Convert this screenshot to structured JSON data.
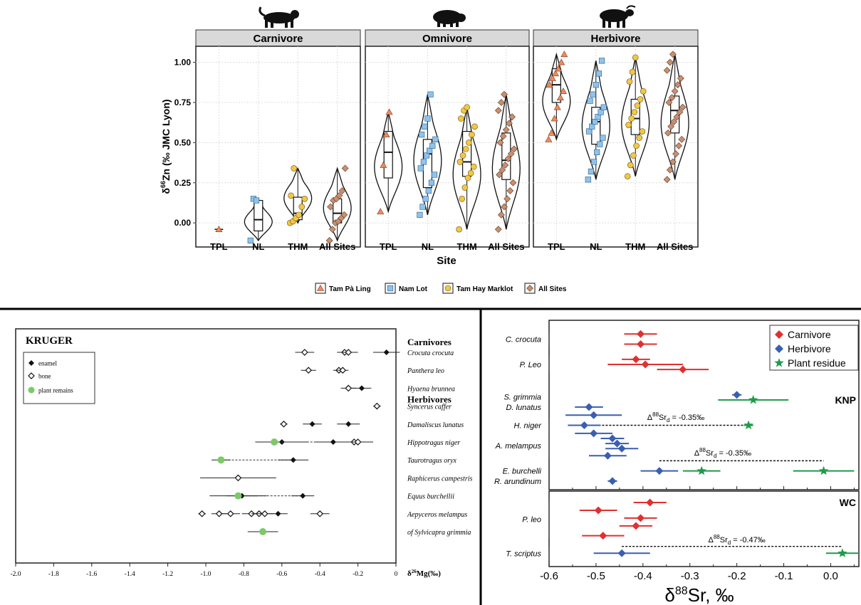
{
  "colors": {
    "tpl": "#f08a5d",
    "nl": "#8fc3ec",
    "thm": "#f2c744",
    "all": "#c98f70",
    "carnivore": "#e03030",
    "herbivore": "#3a5fb0",
    "plant": "#1e9a4a",
    "kruger_plant": "#7cc96a",
    "strip": "#d9d9d9"
  },
  "chart_data": [
    {
      "type": "violin",
      "ylabel_main": "δ",
      "ylabel_sup": "66",
      "ylabel_rest": "Zn (‰ JMC Lyon)",
      "xlabel": "Site",
      "ylim": [
        -0.15,
        1.1
      ],
      "yticks": [
        "1.00",
        "0.75",
        "0.50",
        "0.25",
        "0.00"
      ],
      "categories": [
        "TPL",
        "NL",
        "THM",
        "All Sites"
      ],
      "legend": [
        "Tam Pà Ling",
        "Nam Lot",
        "Tam Hay Marklot",
        "All Sites"
      ],
      "panels": [
        {
          "name": "Carnivore",
          "groups": [
            {
              "site": "TPL",
              "min": -0.04,
              "q1": -0.04,
              "median": -0.04,
              "q3": -0.04,
              "max": -0.04,
              "points": [
                -0.04
              ]
            },
            {
              "site": "NL",
              "min": -0.11,
              "q1": -0.05,
              "median": 0.02,
              "q3": 0.14,
              "max": 0.15,
              "points": [
                -0.11,
                0.15,
                0.14
              ]
            },
            {
              "site": "THM",
              "min": 0.0,
              "q1": 0.02,
              "median": 0.06,
              "q3": 0.16,
              "max": 0.34,
              "points": [
                0.0,
                0.01,
                0.03,
                0.05,
                0.1,
                0.15,
                0.17,
                0.34
              ]
            },
            {
              "site": "All Sites",
              "min": -0.11,
              "q1": 0.0,
              "median": 0.06,
              "q3": 0.15,
              "max": 0.34,
              "points": [
                -0.11,
                -0.04,
                0.0,
                0.01,
                0.03,
                0.05,
                0.1,
                0.14,
                0.15,
                0.17,
                0.2,
                0.34
              ]
            }
          ]
        },
        {
          "name": "Omnivore",
          "groups": [
            {
              "site": "TPL",
              "min": 0.07,
              "q1": 0.28,
              "median": 0.44,
              "q3": 0.57,
              "max": 0.69,
              "points": [
                0.07,
                0.36,
                0.55,
                0.69
              ]
            },
            {
              "site": "NL",
              "min": 0.05,
              "q1": 0.22,
              "median": 0.43,
              "q3": 0.52,
              "max": 0.8,
              "points": [
                0.05,
                0.1,
                0.15,
                0.2,
                0.25,
                0.3,
                0.34,
                0.38,
                0.42,
                0.45,
                0.48,
                0.52,
                0.55,
                0.6,
                0.65,
                0.8
              ]
            },
            {
              "site": "THM",
              "min": -0.04,
              "q1": 0.29,
              "median": 0.38,
              "q3": 0.57,
              "max": 0.72,
              "points": [
                -0.04,
                0.15,
                0.22,
                0.28,
                0.31,
                0.35,
                0.38,
                0.42,
                0.46,
                0.5,
                0.55,
                0.6,
                0.65,
                0.7,
                0.72
              ]
            },
            {
              "site": "All Sites",
              "min": -0.04,
              "q1": 0.27,
              "median": 0.39,
              "q3": 0.56,
              "max": 0.8,
              "points": [
                -0.04,
                0.05,
                0.1,
                0.15,
                0.2,
                0.25,
                0.3,
                0.33,
                0.36,
                0.4,
                0.43,
                0.46,
                0.5,
                0.54,
                0.58,
                0.62,
                0.66,
                0.7,
                0.75,
                0.8
              ]
            }
          ]
        },
        {
          "name": "Herbivore",
          "groups": [
            {
              "site": "TPL",
              "min": 0.52,
              "q1": 0.75,
              "median": 0.86,
              "q3": 0.96,
              "max": 1.05,
              "points": [
                0.52,
                0.56,
                0.65,
                0.72,
                0.78,
                0.82,
                0.86,
                0.9,
                0.93,
                0.96,
                1.0,
                1.05
              ]
            },
            {
              "site": "NL",
              "min": 0.27,
              "q1": 0.49,
              "median": 0.63,
              "q3": 0.72,
              "max": 1.01,
              "points": [
                0.27,
                0.32,
                0.38,
                0.44,
                0.49,
                0.53,
                0.57,
                0.6,
                0.63,
                0.66,
                0.69,
                0.72,
                0.76,
                0.8,
                0.86,
                0.93,
                1.01
              ]
            },
            {
              "site": "THM",
              "min": 0.29,
              "q1": 0.55,
              "median": 0.65,
              "q3": 0.77,
              "max": 1.03,
              "points": [
                0.29,
                0.36,
                0.42,
                0.48,
                0.53,
                0.57,
                0.61,
                0.65,
                0.69,
                0.73,
                0.77,
                0.82,
                0.88,
                0.94,
                1.03
              ]
            },
            {
              "site": "All Sites",
              "min": 0.27,
              "q1": 0.56,
              "median": 0.7,
              "q3": 0.79,
              "max": 1.05,
              "points": [
                0.27,
                0.33,
                0.38,
                0.43,
                0.48,
                0.52,
                0.56,
                0.6,
                0.63,
                0.66,
                0.69,
                0.72,
                0.75,
                0.78,
                0.82,
                0.86,
                0.9,
                0.95,
                1.0,
                1.05
              ]
            }
          ]
        }
      ]
    },
    {
      "type": "scatter",
      "title": "KRUGER",
      "xlabel_main": "δ",
      "xlabel_sup": "26",
      "xlabel_rest": "Mg(‰)",
      "xlim": [
        -2.0,
        0.0
      ],
      "xticks": [
        "-2.0",
        "-1.8",
        "-1.6",
        "-1.4",
        "-1.2",
        "-1.0",
        "-0.8",
        "-0.6",
        "-0.4",
        "-0.2",
        "0"
      ],
      "legend": [
        "enamel",
        "bone",
        "plant remains"
      ],
      "headings": [
        {
          "text": "Carnivores",
          "row": -0.6
        },
        {
          "text": "Herbivores",
          "row": 2.6
        }
      ],
      "rows": [
        {
          "species": "Crocuta crocuta",
          "points": [
            {
              "x": -0.48,
              "err": 0.05,
              "kind": "bone"
            },
            {
              "x": -0.27,
              "err": 0.04,
              "kind": "bone"
            },
            {
              "x": -0.25,
              "err": 0.05,
              "kind": "bone"
            },
            {
              "x": -0.05,
              "err": 0.07,
              "kind": "enamel"
            }
          ]
        },
        {
          "species": "Panthera leo",
          "points": [
            {
              "x": -0.46,
              "err": 0.04,
              "kind": "bone"
            },
            {
              "x": -0.3,
              "err": 0.03,
              "kind": "bone"
            },
            {
              "x": -0.28,
              "err": 0.03,
              "kind": "bone"
            }
          ]
        },
        {
          "species": "Hyaena brunnea",
          "points": [
            {
              "x": -0.25,
              "err": 0.04,
              "kind": "bone"
            },
            {
              "x": -0.18,
              "err": 0.05,
              "kind": "enamel"
            }
          ]
        },
        {
          "species": "Syncerus caffer",
          "points": [
            {
              "x": -0.1,
              "err": 0.02,
              "kind": "bone"
            }
          ]
        },
        {
          "species": "Damaliscus lunatus",
          "points": [
            {
              "x": -0.59,
              "err": 0.02,
              "kind": "bone"
            },
            {
              "x": -0.44,
              "err": 0.05,
              "kind": "enamel"
            },
            {
              "x": -0.25,
              "err": 0.06,
              "kind": "enamel"
            }
          ]
        },
        {
          "species": "Hippotragus niger",
          "points": [
            {
              "x": -0.6,
              "err": 0.14,
              "kind": "enamel"
            },
            {
              "x": -0.33,
              "err": 0.1,
              "kind": "enamel"
            },
            {
              "x": -0.22,
              "err": 0.1,
              "kind": "bone"
            },
            {
              "x": -0.2,
              "err": 0.08,
              "kind": "bone"
            },
            {
              "x": -0.64,
              "err": 0.05,
              "kind": "plant"
            }
          ],
          "link": [
            -0.6,
            -0.33
          ]
        },
        {
          "species": "Taurotragus oryx",
          "points": [
            {
              "x": -0.92,
              "err": 0.05,
              "kind": "plant"
            },
            {
              "x": -0.54,
              "err": 0.08,
              "kind": "enamel"
            }
          ],
          "link": [
            -0.92,
            -0.54
          ]
        },
        {
          "species": "Raphicerus campestris",
          "points": [
            {
              "x": -0.83,
              "err": 0.2,
              "kind": "bone"
            }
          ]
        },
        {
          "species": "Equus burchellii",
          "points": [
            {
              "x": -0.81,
              "err": 0.08,
              "kind": "enamel"
            },
            {
              "x": -0.49,
              "err": 0.06,
              "kind": "enamel"
            },
            {
              "x": -0.83,
              "err": 0.15,
              "kind": "plant"
            }
          ],
          "link": [
            -0.81,
            -0.49
          ]
        },
        {
          "species": "Aepyceros melampus",
          "points": [
            {
              "x": -1.02,
              "err": 0.02,
              "kind": "bone"
            },
            {
              "x": -0.93,
              "err": 0.04,
              "kind": "bone"
            },
            {
              "x": -0.87,
              "err": 0.05,
              "kind": "bone"
            },
            {
              "x": -0.76,
              "err": 0.05,
              "kind": "bone"
            },
            {
              "x": -0.72,
              "err": 0.04,
              "kind": "bone"
            },
            {
              "x": -0.69,
              "err": 0.05,
              "kind": "bone"
            },
            {
              "x": -0.62,
              "err": 0.05,
              "kind": "enamel"
            },
            {
              "x": -0.4,
              "err": 0.05,
              "kind": "bone"
            }
          ]
        },
        {
          "species": "of Sylvicapra grimmia",
          "points": [
            {
              "x": -0.7,
              "err": 0.08,
              "kind": "plant"
            }
          ]
        }
      ]
    },
    {
      "type": "scatter",
      "xlabel_main": "δ",
      "xlabel_sup": "88",
      "xlabel_rest": "Sr, ‰",
      "xlim": [
        -0.6,
        0.06
      ],
      "xticks": [
        "-0.6",
        "-0.5",
        "-0.4",
        "-0.3",
        "-0.2",
        "-0.1",
        "0.0"
      ],
      "legend": [
        "Carnivore",
        "Herbivore",
        "Plant residue"
      ],
      "panels": [
        {
          "label": "KNP",
          "rows": 16,
          "species": [
            {
              "name": "C. crocuta",
              "row": 1.5
            },
            {
              "name": "P. Leo",
              "row": 4
            },
            {
              "name": "S. grimmia",
              "row": 7.2
            },
            {
              "name": "D. lunatus",
              "row": 8.2
            },
            {
              "name": "H. niger",
              "row": 10
            },
            {
              "name": "A. melampus",
              "row": 12
            },
            {
              "name": "E. burchelli",
              "row": 14.5
            },
            {
              "name": "R. arundinum",
              "row": 15.5
            }
          ],
          "brackets": [
            [
              1,
              2
            ],
            [
              3.5,
              4.5
            ],
            [
              9.6,
              10.4
            ],
            [
              11,
              13
            ]
          ],
          "points": [
            {
              "x": -0.405,
              "err": 0.035,
              "kind": "carnivore",
              "row": 1
            },
            {
              "x": -0.405,
              "err": 0.035,
              "kind": "carnivore",
              "row": 2
            },
            {
              "x": -0.415,
              "err": 0.03,
              "kind": "carnivore",
              "row": 3.5
            },
            {
              "x": -0.395,
              "err": 0.08,
              "kind": "carnivore",
              "row": 4
            },
            {
              "x": -0.315,
              "err": 0.055,
              "kind": "carnivore",
              "row": 4.5
            },
            {
              "x": -0.2,
              "err": 0.01,
              "kind": "herbivore",
              "row": 7
            },
            {
              "x": -0.165,
              "err": 0.075,
              "kind": "plant",
              "row": 7.5
            },
            {
              "x": -0.515,
              "err": 0.03,
              "kind": "herbivore",
              "row": 8.2
            },
            {
              "x": -0.505,
              "err": 0.06,
              "kind": "herbivore",
              "row": 9
            },
            {
              "x": -0.525,
              "err": 0.035,
              "kind": "herbivore",
              "row": 10
            },
            {
              "x": -0.175,
              "err": 0.01,
              "kind": "plant",
              "row": 10
            },
            {
              "x": -0.505,
              "err": 0.04,
              "kind": "herbivore",
              "row": 10.8
            },
            {
              "x": -0.465,
              "err": 0.025,
              "kind": "herbivore",
              "row": 11.3
            },
            {
              "x": -0.455,
              "err": 0.025,
              "kind": "herbivore",
              "row": 11.8
            },
            {
              "x": -0.445,
              "err": 0.035,
              "kind": "herbivore",
              "row": 12.3
            },
            {
              "x": -0.475,
              "err": 0.04,
              "kind": "herbivore",
              "row": 13
            },
            {
              "x": -0.365,
              "err": 0.04,
              "kind": "herbivore",
              "row": 14.5
            },
            {
              "x": -0.275,
              "err": 0.04,
              "kind": "plant",
              "row": 14.5
            },
            {
              "x": -0.015,
              "err": 0.065,
              "kind": "plant",
              "row": 14.5
            },
            {
              "x": -0.465,
              "err": 0.01,
              "kind": "herbivore",
              "row": 15.5
            }
          ],
          "differences": [
            {
              "text": "Δ",
              "sup": "88",
              "mid": "Sr",
              "sub": "d",
              "tail": " = -0.35‰",
              "from": -0.525,
              "to": -0.175,
              "row": 10,
              "label_row": 9.2,
              "label_x": -0.33
            },
            {
              "text": "Δ",
              "sup": "88",
              "mid": "Sr",
              "sub": "d",
              "tail": " = -0.35‰",
              "from": -0.365,
              "to": -0.015,
              "row": 13.5,
              "label_row": 12.7,
              "label_x": -0.23
            }
          ]
        },
        {
          "label": "WC",
          "rows": 7,
          "species": [
            {
              "name": "P. leo",
              "row": 2.5
            },
            {
              "name": "T. scriptus",
              "row": 6
            }
          ],
          "brackets": [
            [
              0.8,
              4.2
            ],
            [
              5.5,
              6.5
            ]
          ],
          "points": [
            {
              "x": -0.385,
              "err": 0.035,
              "kind": "carnivore",
              "row": 0.8
            },
            {
              "x": -0.495,
              "err": 0.04,
              "kind": "carnivore",
              "row": 1.6
            },
            {
              "x": -0.405,
              "err": 0.035,
              "kind": "carnivore",
              "row": 2.4
            },
            {
              "x": -0.415,
              "err": 0.035,
              "kind": "carnivore",
              "row": 3.2
            },
            {
              "x": -0.485,
              "err": 0.045,
              "kind": "carnivore",
              "row": 4.2
            },
            {
              "x": -0.445,
              "err": 0.06,
              "kind": "herbivore",
              "row": 6
            },
            {
              "x": 0.025,
              "err": 0.035,
              "kind": "plant",
              "row": 6
            }
          ],
          "differences": [
            {
              "text": "Δ",
              "sup": "88",
              "mid": "Sr",
              "sub": "d",
              "tail": " = -0.47‰",
              "from": -0.445,
              "to": 0.025,
              "row": 5.3,
              "label_row": 4.6,
              "label_x": -0.2
            }
          ]
        }
      ]
    }
  ]
}
